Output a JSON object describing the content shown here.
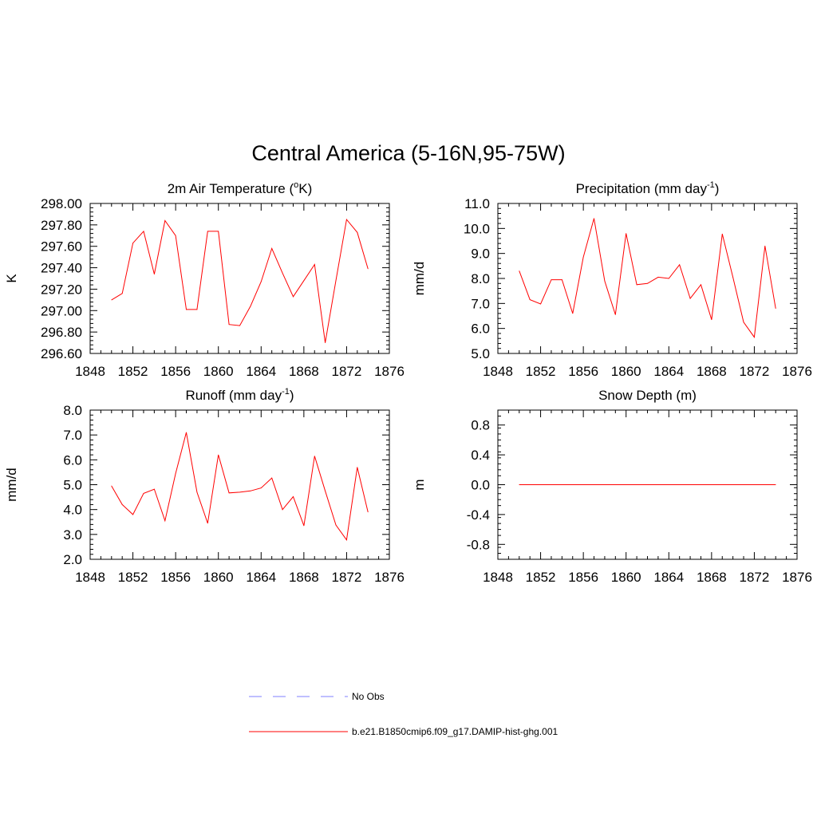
{
  "title": "Central America (5-16N,95-75W)",
  "legend": {
    "position": "bottom-center",
    "entries": [
      {
        "label": "No Obs",
        "color": "#9999ff",
        "style": "dashed"
      },
      {
        "label": "b.e21.B1850cmip6.f09_g17.DAMIP-hist-ghg.001",
        "color": "#ff0000",
        "style": "solid"
      }
    ]
  },
  "chart_data": [
    {
      "type": "line",
      "title": "2m Air Temperature (°K)",
      "title_parts": {
        "before": "2m Air Temperature (",
        "sup": "o",
        "after": "K)"
      },
      "xlabel": "",
      "ylabel": "K",
      "xlim": [
        1848,
        1876
      ],
      "ylim": [
        296.6,
        298.0
      ],
      "xticks": [
        1848,
        1852,
        1856,
        1860,
        1864,
        1868,
        1872,
        1876
      ],
      "xtick_labels": [
        "1848",
        "1852",
        "1856",
        "1860",
        "1864",
        "1868",
        "1872",
        "1876"
      ],
      "yticks": [
        296.6,
        296.8,
        297.0,
        297.2,
        297.4,
        297.6,
        297.8,
        298.0
      ],
      "ytick_labels": [
        "296.60",
        "296.80",
        "297.00",
        "297.20",
        "297.40",
        "297.60",
        "297.80",
        "298.00"
      ],
      "grid": false,
      "series": [
        {
          "name": "b.e21.B1850cmip6.f09_g17.DAMIP-hist-ghg.001",
          "color": "#ff0000",
          "x": [
            1850,
            1851,
            1852,
            1853,
            1854,
            1855,
            1856,
            1857,
            1858,
            1859,
            1860,
            1861,
            1862,
            1863,
            1864,
            1865,
            1866,
            1867,
            1868,
            1869,
            1870,
            1871,
            1872,
            1873,
            1874
          ],
          "y": [
            297.1,
            297.16,
            297.63,
            297.74,
            297.34,
            297.84,
            297.7,
            297.01,
            297.01,
            297.74,
            297.74,
            296.87,
            296.86,
            297.04,
            297.27,
            297.58,
            297.35,
            297.13,
            297.28,
            297.43,
            296.7,
            297.28,
            297.85,
            297.73,
            297.39
          ]
        }
      ]
    },
    {
      "type": "line",
      "title": "Precipitation (mm day-1)",
      "title_parts": {
        "before": "Precipitation (mm day",
        "sup": "-1",
        "after": ")"
      },
      "xlabel": "",
      "ylabel": "mm/d",
      "xlim": [
        1848,
        1876
      ],
      "ylim": [
        5.0,
        11.0
      ],
      "xticks": [
        1848,
        1852,
        1856,
        1860,
        1864,
        1868,
        1872,
        1876
      ],
      "xtick_labels": [
        "1848",
        "1852",
        "1856",
        "1860",
        "1864",
        "1868",
        "1872",
        "1876"
      ],
      "yticks": [
        5,
        6,
        7,
        8,
        9,
        10,
        11
      ],
      "ytick_labels": [
        "5.0",
        "6.0",
        "7.0",
        "8.0",
        "9.0",
        "10.0",
        "11.0"
      ],
      "grid": false,
      "series": [
        {
          "name": "b.e21.B1850cmip6.f09_g17.DAMIP-hist-ghg.001",
          "color": "#ff0000",
          "x": [
            1850,
            1851,
            1852,
            1853,
            1854,
            1855,
            1856,
            1857,
            1858,
            1859,
            1860,
            1861,
            1862,
            1863,
            1864,
            1865,
            1866,
            1867,
            1868,
            1869,
            1870,
            1871,
            1872,
            1873,
            1874
          ],
          "y": [
            8.3,
            7.15,
            6.98,
            7.95,
            7.95,
            6.6,
            8.85,
            10.4,
            7.9,
            6.55,
            9.8,
            7.75,
            7.8,
            8.05,
            8.0,
            8.55,
            7.2,
            7.75,
            6.35,
            9.78,
            8.05,
            6.25,
            5.65,
            9.3,
            6.8
          ]
        }
      ]
    },
    {
      "type": "line",
      "title": "Runoff (mm day-1)",
      "title_parts": {
        "before": "Runoff (mm day",
        "sup": "-1",
        "after": ")"
      },
      "xlabel": "",
      "ylabel": "mm/d",
      "xlim": [
        1848,
        1876
      ],
      "ylim": [
        2.0,
        8.0
      ],
      "xticks": [
        1848,
        1852,
        1856,
        1860,
        1864,
        1868,
        1872,
        1876
      ],
      "xtick_labels": [
        "1848",
        "1852",
        "1856",
        "1860",
        "1864",
        "1868",
        "1872",
        "1876"
      ],
      "yticks": [
        2,
        3,
        4,
        5,
        6,
        7,
        8
      ],
      "ytick_labels": [
        "2.0",
        "3.0",
        "4.0",
        "5.0",
        "6.0",
        "7.0",
        "8.0"
      ],
      "grid": false,
      "series": [
        {
          "name": "b.e21.B1850cmip6.f09_g17.DAMIP-hist-ghg.001",
          "color": "#ff0000",
          "x": [
            1850,
            1851,
            1852,
            1853,
            1854,
            1855,
            1856,
            1857,
            1858,
            1859,
            1860,
            1861,
            1862,
            1863,
            1864,
            1865,
            1866,
            1867,
            1868,
            1869,
            1870,
            1871,
            1872,
            1873,
            1874
          ],
          "y": [
            4.95,
            4.2,
            3.8,
            4.65,
            4.82,
            3.55,
            5.45,
            7.1,
            4.7,
            3.45,
            6.2,
            4.67,
            4.7,
            4.75,
            4.87,
            5.27,
            4.0,
            4.52,
            3.35,
            6.15,
            4.75,
            3.38,
            2.78,
            5.7,
            3.9
          ]
        }
      ]
    },
    {
      "type": "line",
      "title": "Snow Depth (m)",
      "title_parts": {
        "before": "Snow Depth (m)",
        "sup": "",
        "after": ""
      },
      "xlabel": "",
      "ylabel": "m",
      "xlim": [
        1848,
        1876
      ],
      "ylim": [
        -1.0,
        1.0
      ],
      "xticks": [
        1848,
        1852,
        1856,
        1860,
        1864,
        1868,
        1872,
        1876
      ],
      "xtick_labels": [
        "1848",
        "1852",
        "1856",
        "1860",
        "1864",
        "1868",
        "1872",
        "1876"
      ],
      "yticks": [
        -0.8,
        -0.4,
        0.0,
        0.4,
        0.8
      ],
      "ytick_labels": [
        "-0.8",
        "-0.4",
        "0.0",
        "0.4",
        "0.8"
      ],
      "grid": false,
      "series": [
        {
          "name": "b.e21.B1850cmip6.f09_g17.DAMIP-hist-ghg.001",
          "color": "#ff0000",
          "x": [
            1850,
            1851,
            1852,
            1853,
            1854,
            1855,
            1856,
            1857,
            1858,
            1859,
            1860,
            1861,
            1862,
            1863,
            1864,
            1865,
            1866,
            1867,
            1868,
            1869,
            1870,
            1871,
            1872,
            1873,
            1874
          ],
          "y": [
            0,
            0,
            0,
            0,
            0,
            0,
            0,
            0,
            0,
            0,
            0,
            0,
            0,
            0,
            0,
            0,
            0,
            0,
            0,
            0,
            0,
            0,
            0,
            0,
            0
          ]
        }
      ]
    }
  ]
}
